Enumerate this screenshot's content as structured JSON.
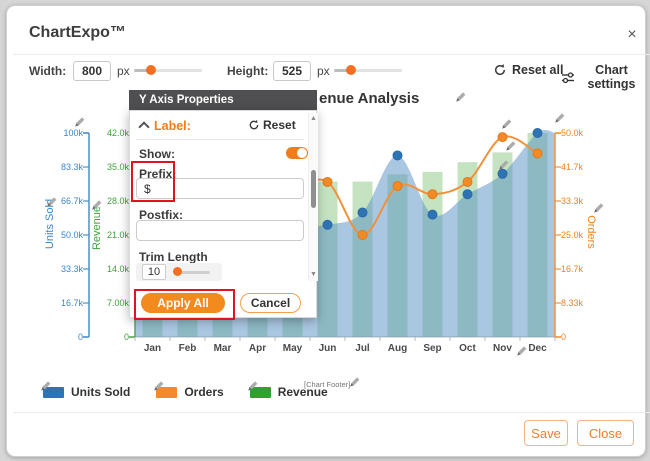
{
  "window": {
    "title": "ChartExpo™",
    "close": "×"
  },
  "toolbar": {
    "width_label": "Width:",
    "width_value": "800",
    "width_unit": "px",
    "height_label": "Height:",
    "height_value": "525",
    "height_unit": "px",
    "reset_all": "Reset all",
    "chart_settings": "Chart settings"
  },
  "popup": {
    "header": "Y Axis Properties",
    "section_label": "Label:",
    "reset": "Reset",
    "show_label": "Show:",
    "prefix_label": "Prefix:",
    "prefix_value": "$",
    "postfix_label": "Postfix:",
    "postfix_value": "",
    "trim_label": "Trim Length",
    "trim_value": "10",
    "apply_all": "Apply All",
    "cancel": "Cancel"
  },
  "chart_data": {
    "type": "combo",
    "title_visible_fragment": "enue Analysis",
    "categories": [
      "Jan",
      "Feb",
      "Mar",
      "Apr",
      "May",
      "Jun",
      "Jul",
      "Aug",
      "Sep",
      "Oct",
      "Nov",
      "Dec"
    ],
    "series": [
      {
        "name": "Units Sold",
        "type": "area",
        "axis": "units_sold",
        "color": "#2e74b5",
        "values": [
          50000,
          52000,
          55000,
          53000,
          54000,
          55000,
          61000,
          89000,
          60000,
          70000,
          80000,
          100000
        ]
      },
      {
        "name": "Orders",
        "type": "line",
        "axis": "orders",
        "color": "#f28a25",
        "values": [
          30000,
          32000,
          35000,
          33000,
          36000,
          38000,
          25000,
          37000,
          35000,
          38000,
          49000,
          45000
        ]
      },
      {
        "name": "Revenue",
        "type": "bar",
        "axis": "revenue",
        "color": "#7ec175",
        "values": [
          28000,
          29000,
          30000,
          30000,
          31000,
          32000,
          32000,
          33500,
          34000,
          36000,
          38000,
          42000
        ]
      }
    ],
    "axes": {
      "units_sold": {
        "title": "Units Sold",
        "color": "#3d85c6",
        "line_color": "#4a90c8",
        "max": 100000,
        "ticks": [
          "0",
          "16.7k",
          "33.3k",
          "50.0k",
          "66.7k",
          "83.3k",
          "100k"
        ]
      },
      "revenue": {
        "title": "Revenue",
        "color": "#3fa33c",
        "line_color": "#56a856",
        "max": 42000,
        "ticks": [
          "0",
          "7.00k",
          "14.0k",
          "21.0k",
          "28.0k",
          "35.0k",
          "42.0k"
        ]
      },
      "orders": {
        "title": "Orders",
        "color": "#f08223",
        "line_color": "#f0923b",
        "max": 50000,
        "ticks": [
          "0",
          "8.33k",
          "16.7k",
          "25.0k",
          "33.3k",
          "41.7k",
          "50.0k"
        ]
      }
    },
    "legend_position": "bottom-left",
    "grid": false
  },
  "legend": [
    {
      "label": "Units Sold",
      "color": "#2e74b5"
    },
    {
      "label": "Orders",
      "color": "#f5882b"
    },
    {
      "label": "Revenue",
      "color": "#2ea12e"
    }
  ],
  "chart_footer": "[Chart Footer]",
  "actions": {
    "save": "Save",
    "close": "Close"
  },
  "colors": {
    "accent_orange": "#f28a1e",
    "highlight_red": "#e0141e",
    "popup_header": "#4f4f51"
  }
}
